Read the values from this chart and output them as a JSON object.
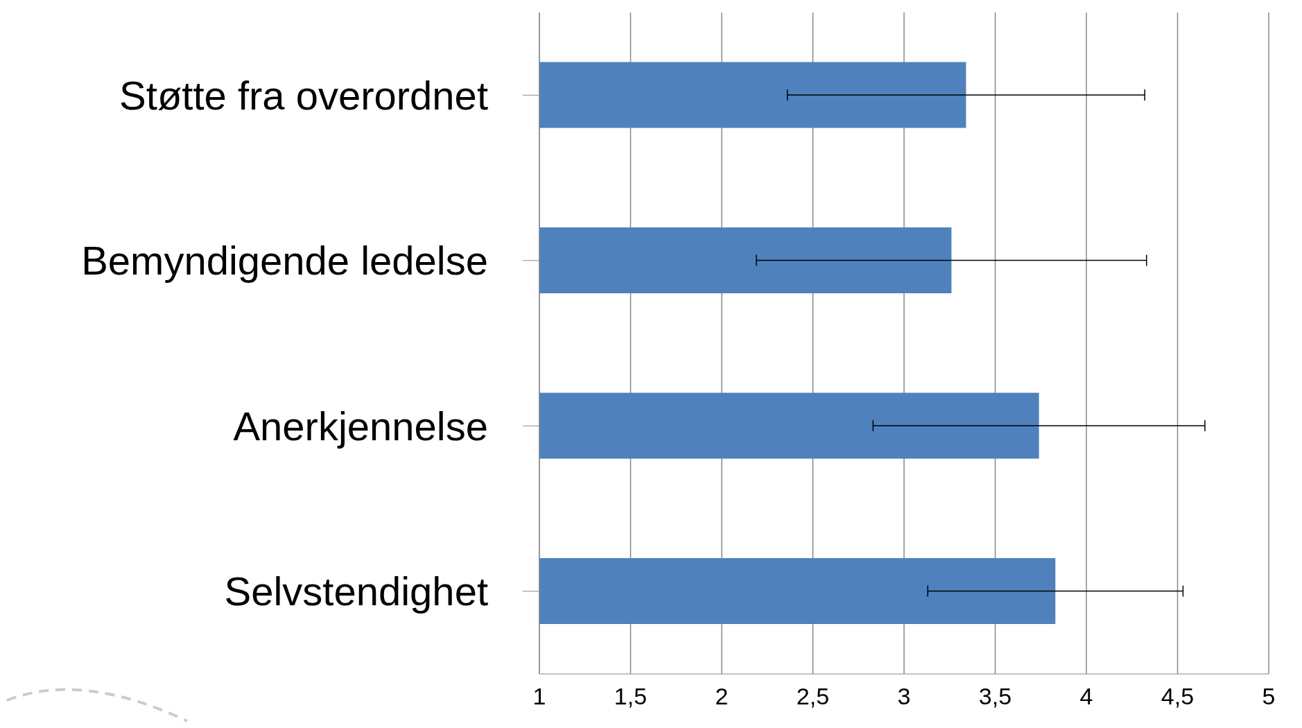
{
  "chart_data": {
    "type": "bar",
    "orientation": "horizontal",
    "categories": [
      "Støtte fra overordnet",
      "Bemyndigende ledelse",
      "Anerkjennelse",
      "Selvstendighet"
    ],
    "values": [
      3.34,
      3.26,
      3.74,
      3.83
    ],
    "errors": [
      0.98,
      1.07,
      0.91,
      0.7
    ],
    "color": "#4f81bd",
    "xlim": [
      1,
      5
    ],
    "xticks": [
      1,
      {
        "value": 1.5,
        "label": "1,5"
      },
      2,
      {
        "value": 2.5,
        "label": "2,5"
      },
      3,
      {
        "value": 3.5,
        "label": "3,5"
      },
      4,
      {
        "value": 4.5,
        "label": "4,5"
      },
      5
    ],
    "grid": "x"
  }
}
